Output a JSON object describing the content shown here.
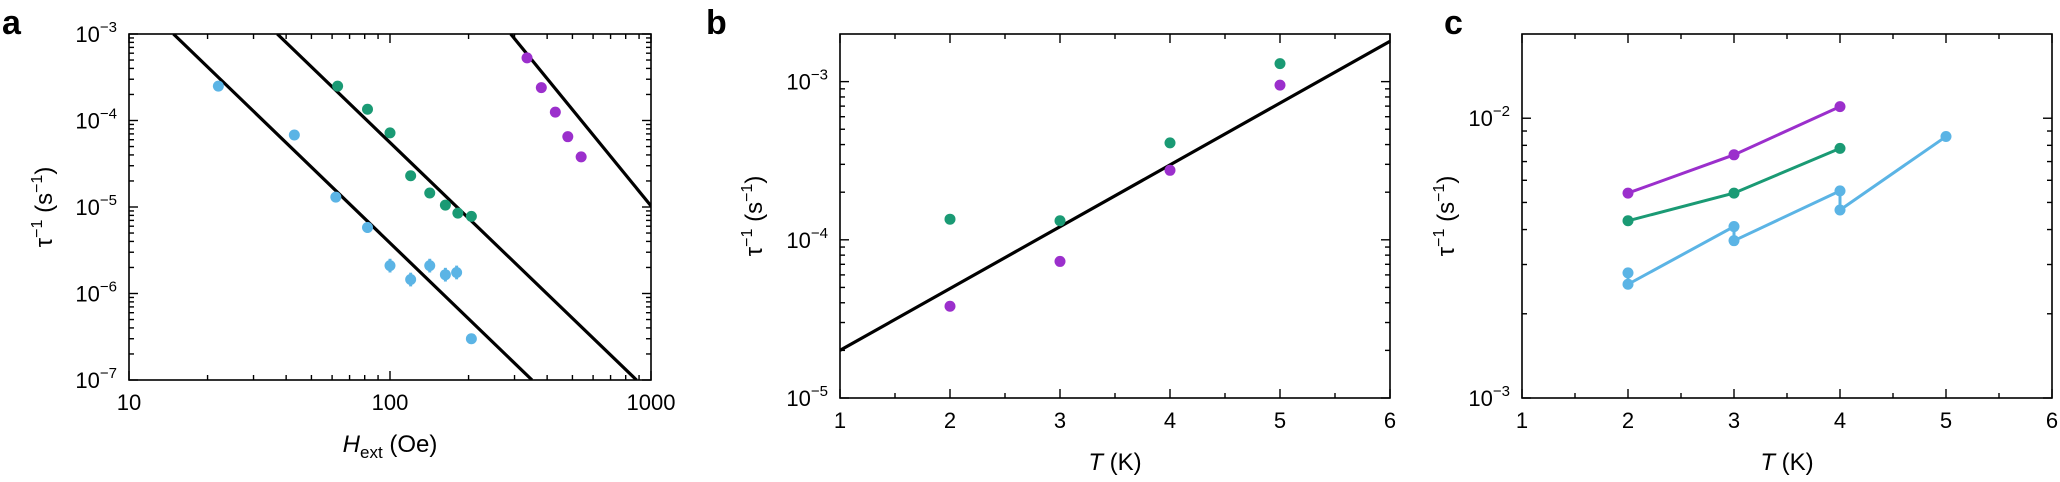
{
  "colors": {
    "blue": "#5bb4e5",
    "green": "#1a9a74",
    "purple": "#9b2fcc",
    "fit_line": "#000000"
  },
  "chart_data": [
    {
      "id": "a",
      "panel_label": "a",
      "type": "scatter",
      "x_scale": "log",
      "y_scale": "log",
      "xlim": [
        10,
        1000
      ],
      "ylim": [
        1e-07,
        0.001
      ],
      "xlabel": {
        "main": "H",
        "sub": "ext",
        "suffix": " (Oe)"
      },
      "ylabel": {
        "main": "τ",
        "sup": "−1",
        "suffix": " (s",
        "sup2": "−1",
        "end": ")"
      },
      "x_ticks": [
        {
          "v": 10,
          "label": "10"
        },
        {
          "v": 100,
          "label": "100"
        },
        {
          "v": 1000,
          "label": "1000"
        }
      ],
      "y_ticks": [
        {
          "v": 1e-07,
          "base": "10",
          "exp": "−7"
        },
        {
          "v": 1e-06,
          "base": "10",
          "exp": "−6"
        },
        {
          "v": 1e-05,
          "base": "10",
          "exp": "−5"
        },
        {
          "v": 0.0001,
          "base": "10",
          "exp": "−4"
        },
        {
          "v": 0.001,
          "base": "10",
          "exp": "−3"
        }
      ],
      "series": [
        {
          "color": "blue",
          "points": [
            {
              "x": 22,
              "y": 0.00025
            },
            {
              "x": 43,
              "y": 6.8e-05
            },
            {
              "x": 62,
              "y": 1.3e-05
            },
            {
              "x": 82,
              "y": 5.8e-06,
              "err": 0.15
            },
            {
              "x": 100,
              "y": 2.1e-06,
              "err": 0.2
            },
            {
              "x": 120,
              "y": 1.45e-06,
              "err": 0.2
            },
            {
              "x": 142,
              "y": 2.1e-06,
              "err": 0.2
            },
            {
              "x": 163,
              "y": 1.65e-06,
              "err": 0.2
            },
            {
              "x": 180,
              "y": 1.75e-06,
              "err": 0.2
            },
            {
              "x": 205,
              "y": 3e-07
            }
          ]
        },
        {
          "color": "green",
          "points": [
            {
              "x": 63,
              "y": 0.00025
            },
            {
              "x": 82,
              "y": 0.000135
            },
            {
              "x": 100,
              "y": 7.2e-05
            },
            {
              "x": 120,
              "y": 2.3e-05
            },
            {
              "x": 142,
              "y": 1.45e-05
            },
            {
              "x": 163,
              "y": 1.05e-05
            },
            {
              "x": 182,
              "y": 8.5e-06
            },
            {
              "x": 205,
              "y": 7.8e-06
            }
          ]
        },
        {
          "color": "purple",
          "points": [
            {
              "x": 335,
              "y": 0.00053
            },
            {
              "x": 380,
              "y": 0.00024
            },
            {
              "x": 430,
              "y": 0.000125
            },
            {
              "x": 480,
              "y": 6.5e-05
            },
            {
              "x": 540,
              "y": 3.8e-05
            }
          ]
        }
      ],
      "lines": [
        {
          "x1": 14.8,
          "y1": 0.001,
          "x2": 350,
          "y2": 1e-07
        },
        {
          "x1": 37,
          "y1": 0.001,
          "x2": 880,
          "y2": 1e-07
        },
        {
          "x1": 290,
          "y1": 0.001,
          "x2": 1000,
          "y2": 1.03e-05
        }
      ]
    },
    {
      "id": "b",
      "panel_label": "b",
      "type": "scatter",
      "x_scale": "linear",
      "y_scale": "log",
      "xlim": [
        1,
        6
      ],
      "ylim": [
        1e-05,
        0.002
      ],
      "xlabel": {
        "main": "T",
        "suffix": " (K)"
      },
      "ylabel": {
        "main": "τ",
        "sup": "−1",
        "suffix": " (s",
        "sup2": "−1",
        "end": ")"
      },
      "x_ticks": [
        {
          "v": 1,
          "label": "1"
        },
        {
          "v": 2,
          "label": "2"
        },
        {
          "v": 3,
          "label": "3"
        },
        {
          "v": 4,
          "label": "4"
        },
        {
          "v": 5,
          "label": "5"
        },
        {
          "v": 6,
          "label": "6"
        }
      ],
      "y_ticks": [
        {
          "v": 1e-05,
          "base": "10",
          "exp": "−5"
        },
        {
          "v": 0.0001,
          "base": "10",
          "exp": "−4"
        },
        {
          "v": 0.001,
          "base": "10",
          "exp": "−3"
        }
      ],
      "series": [
        {
          "color": "green",
          "points": [
            {
              "x": 2,
              "y": 0.000135
            },
            {
              "x": 3,
              "y": 0.000132
            },
            {
              "x": 4,
              "y": 0.00041
            },
            {
              "x": 5,
              "y": 0.0013
            }
          ]
        },
        {
          "color": "purple",
          "points": [
            {
              "x": 2,
              "y": 3.8e-05
            },
            {
              "x": 3,
              "y": 7.3e-05
            },
            {
              "x": 4,
              "y": 0.000275
            },
            {
              "x": 5,
              "y": 0.00095
            }
          ]
        }
      ],
      "lines": [
        {
          "x1": 1,
          "y1": 2e-05,
          "x2": 6,
          "y2": 0.0018
        }
      ]
    },
    {
      "id": "c",
      "panel_label": "c",
      "type": "line",
      "x_scale": "linear",
      "y_scale": "log",
      "xlim": [
        1,
        6
      ],
      "ylim": [
        0.001,
        0.02
      ],
      "xlabel": {
        "main": "T",
        "suffix": " (K)"
      },
      "ylabel": {
        "main": "τ",
        "sup": "−1",
        "suffix": " (s",
        "sup2": "−1",
        "end": ")"
      },
      "x_ticks": [
        {
          "v": 1,
          "label": "1"
        },
        {
          "v": 2,
          "label": "2"
        },
        {
          "v": 3,
          "label": "3"
        },
        {
          "v": 4,
          "label": "4"
        },
        {
          "v": 5,
          "label": "5"
        },
        {
          "v": 6,
          "label": "6"
        }
      ],
      "y_ticks": [
        {
          "v": 0.001,
          "base": "10",
          "exp": "−3"
        },
        {
          "v": 0.01,
          "base": "10",
          "exp": "−2"
        }
      ],
      "series": [
        {
          "color": "purple",
          "points": [
            {
              "x": 2,
              "y": 0.0054
            },
            {
              "x": 3,
              "y": 0.0074
            },
            {
              "x": 4,
              "y": 0.011
            }
          ]
        },
        {
          "color": "green",
          "points": [
            {
              "x": 2,
              "y": 0.0043
            },
            {
              "x": 3,
              "y": 0.0054
            },
            {
              "x": 4,
              "y": 0.0078
            }
          ]
        },
        {
          "color": "blue",
          "points": [
            {
              "x": 2,
              "y": 0.0028
            },
            {
              "x": 2,
              "y": 0.00255
            },
            {
              "x": 3,
              "y": 0.0041
            },
            {
              "x": 3,
              "y": 0.00365
            },
            {
              "x": 4,
              "y": 0.0055
            },
            {
              "x": 4,
              "y": 0.0047
            },
            {
              "x": 5,
              "y": 0.0086
            }
          ]
        }
      ]
    }
  ]
}
